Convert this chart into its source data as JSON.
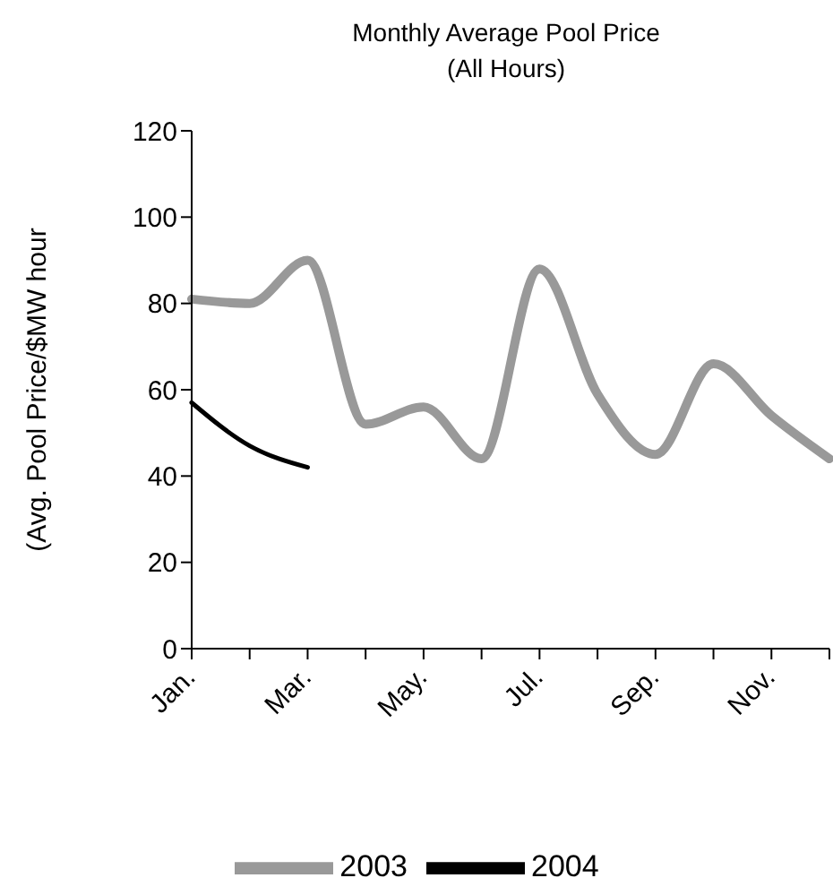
{
  "chart_data": {
    "type": "line",
    "title": "Monthly Average Pool Price",
    "subtitle": "(All Hours)",
    "ylabel": "(Avg. Pool Price/$MW hour",
    "categories": [
      "Jan.",
      null,
      "Mar.",
      null,
      "May.",
      null,
      "Jul.",
      null,
      "Sep.",
      null,
      "Nov.",
      null
    ],
    "series": [
      {
        "name": "2003",
        "color": "#999999",
        "values": [
          81,
          80,
          90,
          52,
          56,
          44,
          88,
          59,
          45,
          66,
          54,
          44
        ]
      },
      {
        "name": "2004",
        "color": "#000000",
        "values": [
          57,
          47,
          42,
          null,
          null,
          null,
          null,
          null,
          null,
          null,
          null,
          null
        ]
      }
    ],
    "ylim": [
      0,
      120
    ],
    "yticks": [
      0,
      20,
      40,
      60,
      80,
      100,
      120
    ],
    "grid": false,
    "legend": "bottom",
    "marker": "none",
    "line_style": "solid"
  }
}
